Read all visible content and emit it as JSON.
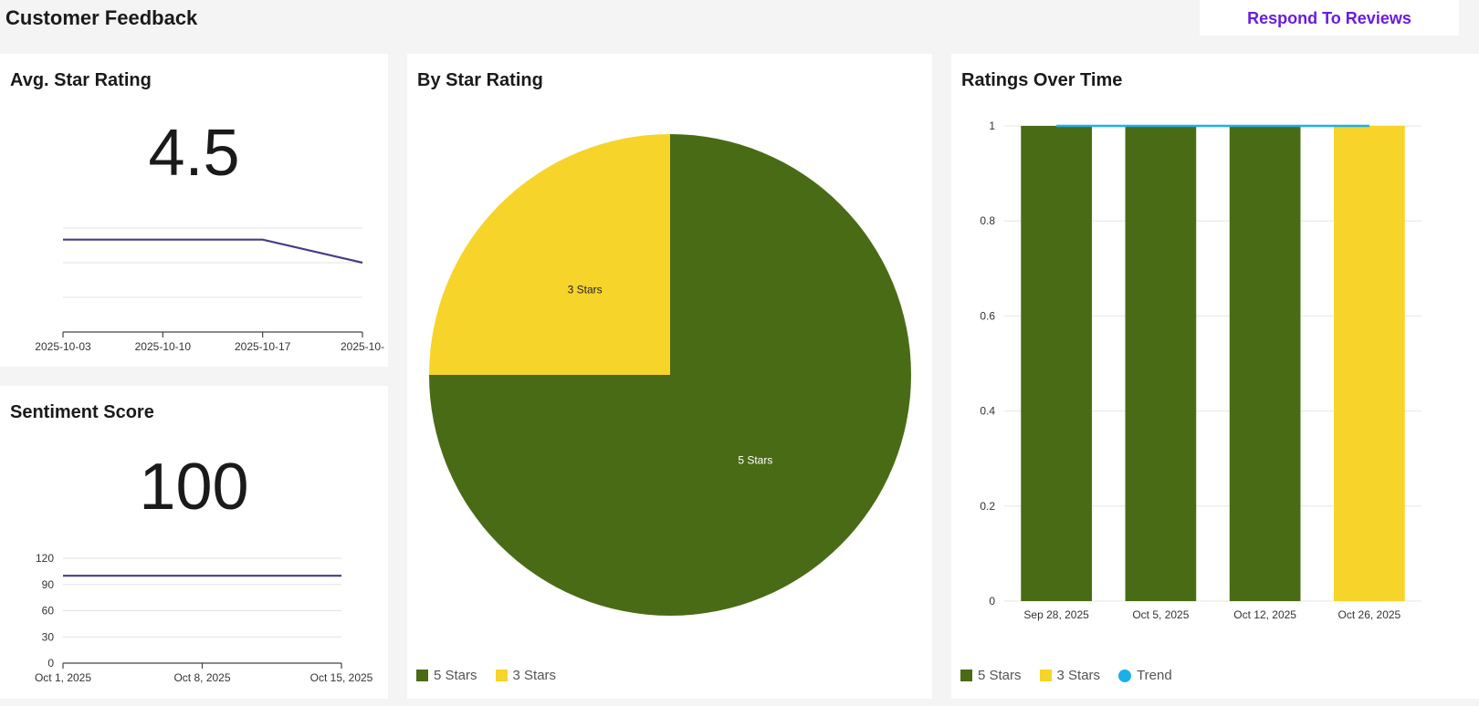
{
  "header": {
    "title": "Customer Feedback",
    "respond_button": "Respond To Reviews"
  },
  "colors": {
    "five_stars": "#4a6b16",
    "three_stars": "#f6d42a",
    "trend": "#1ab0ea",
    "kpi_line": "#4b3a86",
    "accent": "#6a1be0"
  },
  "avg_rating": {
    "title": "Avg. Star Rating",
    "value": "4.5"
  },
  "sentiment": {
    "title": "Sentiment Score",
    "value": "100"
  },
  "star_pie": {
    "title": "By Star Rating",
    "legend": [
      "5 Stars",
      "3 Stars"
    ]
  },
  "ratings_time": {
    "title": "Ratings Over Time",
    "legend": [
      "5 Stars",
      "3 Stars",
      "Trend"
    ]
  },
  "chart_data": [
    {
      "type": "line",
      "title": "Avg. Star Rating",
      "x": [
        "2025-10-03",
        "2025-10-10",
        "2025-10-17",
        "2025-10-"
      ],
      "series": [
        {
          "values": [
            5,
            5,
            5,
            4
          ]
        }
      ]
    },
    {
      "type": "line",
      "title": "Sentiment Score",
      "x": [
        "Oct 1, 2025",
        "Oct 8, 2025",
        "Oct 15, 2025"
      ],
      "yticks": [
        0,
        30,
        60,
        90,
        120
      ],
      "ylim": [
        0,
        120
      ],
      "series": [
        {
          "values": [
            100,
            100,
            100
          ]
        }
      ]
    },
    {
      "type": "pie",
      "title": "By Star Rating",
      "categories": [
        "5 Stars",
        "3 Stars"
      ],
      "values": [
        3,
        1
      ]
    },
    {
      "type": "bar",
      "title": "Ratings Over Time",
      "categories": [
        "Sep 28, 2025",
        "Oct 5, 2025",
        "Oct 12, 2025",
        "Oct 26, 2025"
      ],
      "yticks": [
        0,
        0.2,
        0.4,
        0.6,
        0.8,
        1
      ],
      "ylim": [
        0,
        1
      ],
      "series": [
        {
          "name": "5 Stars",
          "values": [
            1,
            1,
            1,
            0
          ]
        },
        {
          "name": "3 Stars",
          "values": [
            0,
            0,
            0,
            1
          ]
        },
        {
          "name": "Trend",
          "type": "line",
          "values": [
            1,
            1,
            1,
            1
          ]
        }
      ],
      "legend_position": "bottom"
    }
  ]
}
